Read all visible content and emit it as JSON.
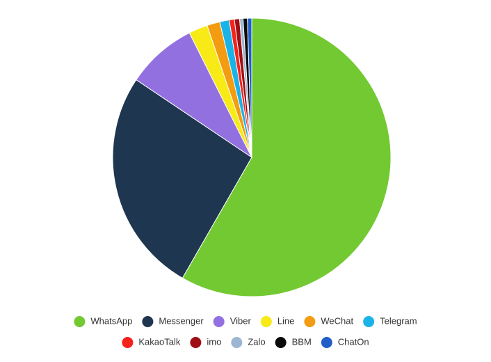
{
  "chart_data": {
    "type": "pie",
    "categories": [
      "WhatsApp",
      "Messenger",
      "Viber",
      "Line",
      "WeChat",
      "Telegram",
      "KakaoTalk",
      "imo",
      "Zalo",
      "BBM",
      "ChatOn"
    ],
    "values": [
      58.3,
      26.1,
      8.2,
      2.2,
      1.5,
      1.1,
      0.6,
      0.6,
      0.4,
      0.5,
      0.5
    ],
    "colors": [
      "#72c931",
      "#1f3650",
      "#9370e0",
      "#f7ea16",
      "#f39c12",
      "#1ab3e8",
      "#f5221b",
      "#a00f14",
      "#9db6d4",
      "#0a0a0a",
      "#1f5fc7"
    ],
    "legend": "bottom"
  }
}
